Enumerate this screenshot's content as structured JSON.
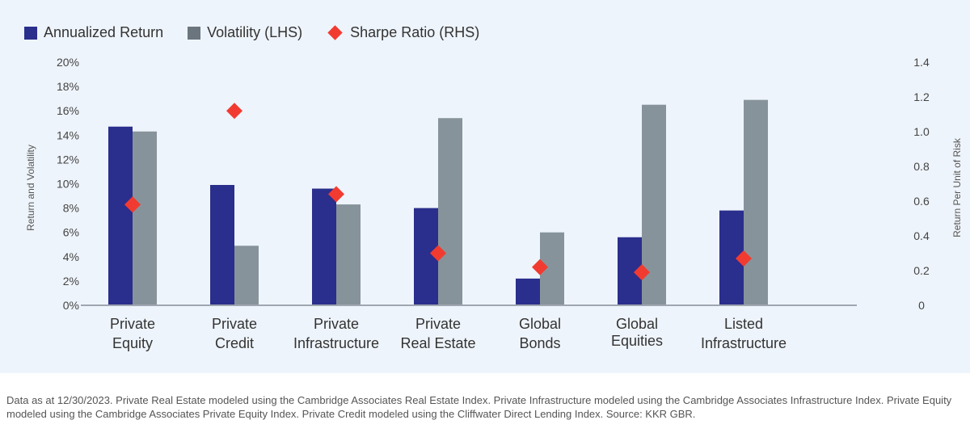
{
  "chart_data": {
    "type": "bar",
    "categories": [
      [
        "Private",
        "Equity"
      ],
      [
        "Private",
        "Credit"
      ],
      [
        "Private",
        "Infrastructure"
      ],
      [
        "Private",
        "Real Estate"
      ],
      [
        "Global",
        "Bonds"
      ],
      [
        "Global",
        "Equities"
      ],
      [
        "Listed",
        "Infrastructure"
      ]
    ],
    "series": [
      {
        "name": "Annualized Return",
        "axis": "left",
        "kind": "bar",
        "color": "#2a2e8c",
        "values": [
          14.7,
          9.9,
          9.6,
          8.0,
          2.2,
          5.6,
          7.8
        ]
      },
      {
        "name": "Volatility (LHS)",
        "axis": "left",
        "kind": "bar",
        "color": "#87939a",
        "values": [
          14.3,
          4.9,
          8.3,
          15.4,
          6.0,
          16.5,
          16.9
        ]
      },
      {
        "name": "Sharpe Ratio (RHS)",
        "axis": "right",
        "kind": "marker",
        "color": "#f23b30",
        "values": [
          0.58,
          1.12,
          0.64,
          0.3,
          0.22,
          0.19,
          0.27
        ]
      }
    ],
    "ylabel": "Return and Volatility",
    "y2label": "Return Per Unit of Risk",
    "ylim": [
      0,
      20
    ],
    "y2lim": [
      0,
      1.4
    ],
    "yticks": [
      "0%",
      "2%",
      "4%",
      "6%",
      "8%",
      "10%",
      "12%",
      "14%",
      "16%",
      "18%",
      "20%"
    ],
    "y2ticks": [
      "0",
      "0.2",
      "0.4",
      "0.6",
      "0.8",
      "1.0",
      "1.2",
      "1.4"
    ],
    "legend": "top-left",
    "grid": false
  },
  "footnote": "Data as at 12/30/2023. Private Real Estate modeled using the Cambridge Associates Real Estate Index. Private Infrastructure modeled using the Cambridge Associates Infrastructure Index. Private Equity modeled using the Cambridge Associates Private Equity Index. Private Credit modeled using the Cliffwater Direct Lending Index. Source: KKR GBR."
}
